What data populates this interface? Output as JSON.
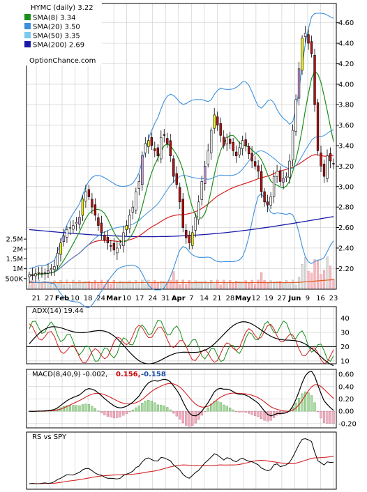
{
  "chart_data": [
    {
      "type": "candlestick",
      "title": "HYMC (daily) 3.22",
      "watermark": "OptionChance.com",
      "legend": [
        {
          "label": "SMA(8) 3.34",
          "color": "#1a8f1a"
        },
        {
          "label": "SMA(20) 3.50",
          "color": "#3b8fdc"
        },
        {
          "label": "SMA(50) 3.35",
          "color": "#7cc8f0"
        },
        {
          "label": "SMA(200) 2.69",
          "color": "#1a1aa8"
        }
      ],
      "price_ticks": [
        "4.60",
        "4.40",
        "4.20",
        "4.00",
        "3.80",
        "3.60",
        "3.40",
        "3.20",
        "3.00",
        "2.80",
        "2.60",
        "2.40",
        "2.20"
      ],
      "volume_ticks": [
        "2.5M",
        "2M",
        "1.5M",
        "1M",
        "500K"
      ],
      "date_labels": [
        "21",
        "27",
        "Feb",
        "10",
        "18",
        "24",
        "Mar",
        "10",
        "17",
        "24",
        "31",
        "Apr",
        "7",
        "14",
        "21",
        "28",
        "May",
        "12",
        "19",
        "27",
        "Jun",
        "9",
        "16",
        "23"
      ],
      "ylim": [
        2.1,
        4.7
      ],
      "close": [
        2.14,
        2.13,
        2.15,
        2.16,
        2.15,
        2.16,
        2.18,
        2.2,
        2.22,
        2.35,
        2.45,
        2.52,
        2.58,
        2.6,
        2.62,
        2.65,
        2.7,
        2.88,
        2.95,
        2.9,
        2.8,
        2.72,
        2.62,
        2.55,
        2.48,
        2.45,
        2.42,
        2.38,
        2.4,
        2.45,
        2.55,
        2.62,
        2.72,
        2.8,
        2.95,
        3.05,
        3.3,
        3.42,
        3.45,
        3.4,
        3.35,
        3.3,
        3.48,
        3.5,
        3.42,
        3.3,
        3.1,
        3.02,
        2.85,
        2.6,
        2.5,
        2.45,
        2.55,
        2.7,
        2.85,
        3.05,
        3.2,
        3.35,
        3.55,
        3.7,
        3.6,
        3.5,
        3.4,
        3.48,
        3.42,
        3.35,
        3.3,
        3.38,
        3.45,
        3.4,
        3.32,
        3.25,
        3.2,
        3.15,
        2.95,
        2.85,
        2.82,
        2.9,
        3.1,
        3.15,
        3.05,
        3.08,
        3.1,
        3.25,
        3.55,
        3.85,
        4.15,
        4.45,
        4.5,
        4.4,
        4.3,
        3.8,
        3.35,
        3.2,
        3.1,
        3.3,
        3.25,
        3.22
      ]
    },
    {
      "type": "line",
      "title": "ADX(14) 19.44",
      "yticks": [
        "40",
        "30",
        "20",
        "10"
      ],
      "ylim": [
        8,
        48
      ]
    },
    {
      "type": "line",
      "title": "MACD(8,40,9) -0.002,",
      "values_text": [
        "0.156,",
        "-0.158"
      ],
      "value_colors": [
        "#cc0000",
        "#1a4fa8"
      ],
      "yticks": [
        "0.60",
        "0.40",
        "0.20",
        "0.00",
        "-0.20"
      ],
      "ylim": [
        -0.27,
        0.68
      ]
    },
    {
      "type": "line",
      "title": "RS vs SPY"
    }
  ]
}
